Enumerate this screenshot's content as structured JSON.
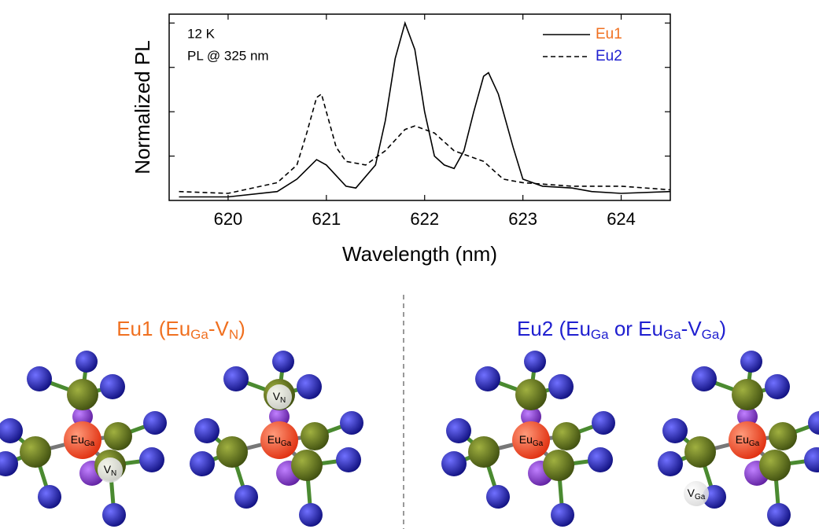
{
  "chart_data": {
    "type": "line",
    "x_label": "Wavelength (nm)",
    "y_label": "Normalized PL",
    "annotations": [
      "12 K",
      "PL @ 325 nm"
    ],
    "xlim": [
      619.4,
      624.5
    ],
    "xticks": [
      620,
      621,
      622,
      623,
      624
    ],
    "ylim": [
      0,
      1.05
    ],
    "yticks": [
      0.25,
      0.5,
      0.75,
      1.0
    ],
    "series": [
      {
        "name": "Eu1",
        "color": "#f07020",
        "dash": "solid",
        "x": [
          619.5,
          620,
          620.5,
          620.7,
          620.9,
          621,
          621.2,
          621.3,
          621.5,
          621.6,
          621.7,
          621.8,
          621.9,
          622,
          622.1,
          622.2,
          622.3,
          622.4,
          622.5,
          622.6,
          622.65,
          622.75,
          622.9,
          623,
          623.2,
          623.5,
          623.7,
          624,
          624.5
        ],
        "values": [
          0.02,
          0.02,
          0.05,
          0.12,
          0.23,
          0.2,
          0.08,
          0.07,
          0.2,
          0.45,
          0.8,
          1.0,
          0.85,
          0.5,
          0.25,
          0.2,
          0.18,
          0.28,
          0.5,
          0.7,
          0.72,
          0.6,
          0.3,
          0.12,
          0.08,
          0.07,
          0.05,
          0.04,
          0.05
        ]
      },
      {
        "name": "Eu2",
        "color": "#2020d0",
        "dash": "dashed",
        "x": [
          619.5,
          620,
          620.5,
          620.7,
          620.8,
          620.9,
          620.95,
          621,
          621.1,
          621.2,
          621.4,
          621.6,
          621.8,
          621.9,
          622.1,
          622.3,
          622.6,
          622.8,
          623,
          623.5,
          624,
          624.5
        ],
        "values": [
          0.05,
          0.04,
          0.1,
          0.2,
          0.38,
          0.58,
          0.6,
          0.5,
          0.3,
          0.22,
          0.2,
          0.28,
          0.4,
          0.42,
          0.38,
          0.28,
          0.22,
          0.12,
          0.1,
          0.08,
          0.08,
          0.06
        ]
      }
    ]
  },
  "diagrams": {
    "eu1_title": {
      "color": "#f07020",
      "parts": [
        "Eu1 (Eu",
        "Ga",
        "-V",
        "N",
        ")"
      ]
    },
    "eu2_title": {
      "color": "#2020d0",
      "parts": [
        "Eu2 (Eu",
        "Ga",
        " or Eu",
        "Ga",
        "-V",
        "Ga",
        ")"
      ]
    },
    "structures": [
      {
        "center": [
          "Eu",
          "Ga"
        ],
        "defect": [
          "V",
          "N"
        ]
      },
      {
        "center": [
          "Eu",
          "Ga"
        ],
        "defect": [
          "V",
          "N"
        ]
      },
      {
        "center": [
          "Eu",
          "Ga"
        ]
      },
      {
        "center": [
          "Eu",
          "Ga"
        ],
        "defect": [
          "V",
          "Ga"
        ]
      }
    ]
  }
}
